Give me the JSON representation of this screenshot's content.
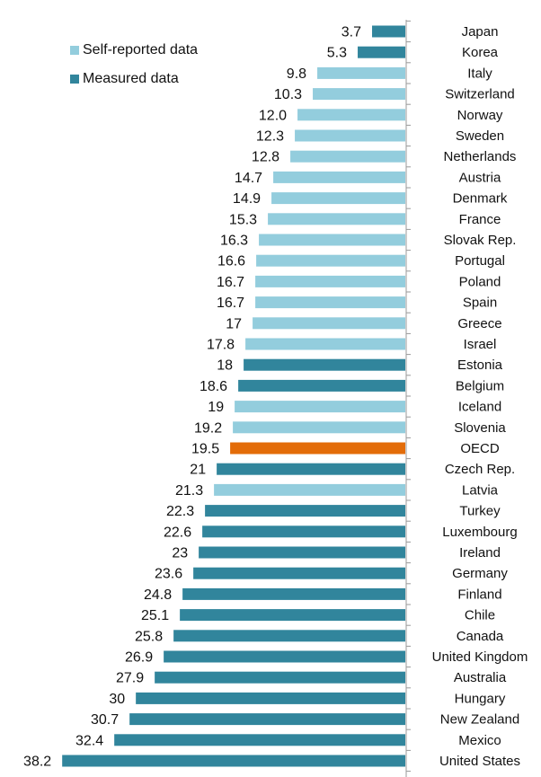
{
  "chart_data": {
    "type": "bar",
    "orientation": "horizontal",
    "title": "",
    "xlabel": "",
    "ylabel": "",
    "xlim": [
      0,
      40
    ],
    "grid": false,
    "legend_position": "top-left",
    "legend": [
      {
        "name": "Self-reported data",
        "color": "#93cddd"
      },
      {
        "name": "Measured data",
        "color": "#31859c"
      }
    ],
    "highlight_color": "#e36c09",
    "categories": [
      "Japan",
      "Korea",
      "Italy",
      "Switzerland",
      "Norway",
      "Sweden",
      "Netherlands",
      "Austria",
      "Denmark",
      "France",
      "Slovak Rep.",
      "Portugal",
      "Poland",
      "Spain",
      "Greece",
      "Israel",
      "Estonia",
      "Belgium",
      "Iceland",
      "Slovenia",
      "OECD",
      "Czech Rep.",
      "Latvia",
      "Turkey",
      "Luxembourg",
      "Ireland",
      "Germany",
      "Finland",
      "Chile",
      "Canada",
      "United Kingdom",
      "Australia",
      "Hungary",
      "New Zealand",
      "Mexico",
      "United States"
    ],
    "values": [
      3.7,
      5.3,
      9.8,
      10.3,
      12.0,
      12.3,
      12.8,
      14.7,
      14.9,
      15.3,
      16.3,
      16.6,
      16.7,
      16.7,
      17,
      17.8,
      18,
      18.6,
      19,
      19.2,
      19.5,
      21,
      21.3,
      22.3,
      22.6,
      23,
      23.6,
      24.8,
      25.1,
      25.8,
      26.9,
      27.9,
      30,
      30.7,
      32.4,
      38.2
    ],
    "value_labels": [
      "3.7",
      "5.3",
      "9.8",
      "10.3",
      "12.0",
      "12.3",
      "12.8",
      "14.7",
      "14.9",
      "15.3",
      "16.3",
      "16.6",
      "16.7",
      "16.7",
      "17",
      "17.8",
      "18",
      "18.6",
      "19",
      "19.2",
      "19.5",
      "21",
      "21.3",
      "22.3",
      "22.6",
      "23",
      "23.6",
      "24.8",
      "25.1",
      "25.8",
      "26.9",
      "27.9",
      "30",
      "30.7",
      "32.4",
      "38.2"
    ],
    "data_type": [
      "measured",
      "measured",
      "self",
      "self",
      "self",
      "self",
      "self",
      "self",
      "self",
      "self",
      "self",
      "self",
      "self",
      "self",
      "self",
      "self",
      "measured",
      "measured",
      "self",
      "self",
      "oecd",
      "measured",
      "self",
      "measured",
      "measured",
      "measured",
      "measured",
      "measured",
      "measured",
      "measured",
      "measured",
      "measured",
      "measured",
      "measured",
      "measured",
      "measured"
    ]
  }
}
